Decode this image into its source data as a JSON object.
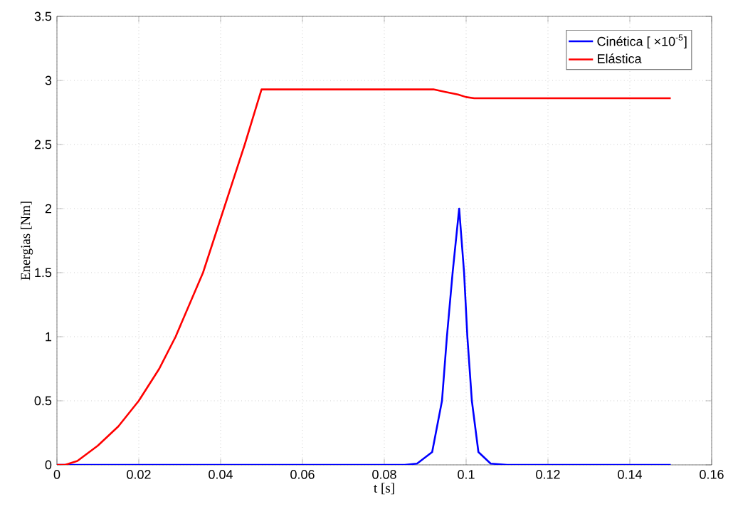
{
  "chart_data": {
    "type": "line",
    "xlabel": "t [s]",
    "ylabel": "Energias [Nm]",
    "xlim": [
      0,
      0.16
    ],
    "xticks": [
      0,
      0.02,
      0.04,
      0.06,
      0.08,
      0.1,
      0.12,
      0.14,
      0.16
    ],
    "ylim": [
      0,
      3.5
    ],
    "yticks": [
      0,
      0.5,
      1,
      1.5,
      2,
      2.5,
      3,
      3.5
    ],
    "grid": true,
    "legend": "top right",
    "series": [
      {
        "name": "Cinética [ ×10$^{-5}$]",
        "color": "#0000ff",
        "x": [
          0,
          0.085,
          0.088,
          0.0917,
          0.0941,
          0.0953,
          0.0967,
          0.0983,
          0.0995,
          0.1003,
          0.1014,
          0.103,
          0.106,
          0.11,
          0.15
        ],
        "values": [
          0,
          0,
          0.01,
          0.1,
          0.5,
          1,
          1.5,
          2,
          1.5,
          1,
          0.5,
          0.1,
          0.01,
          0,
          0
        ]
      },
      {
        "name": "Elástica",
        "color": "#ff0000",
        "x": [
          0,
          0.002,
          0.005,
          0.01,
          0.015,
          0.02,
          0.025,
          0.029,
          0.0357,
          0.0408,
          0.0459,
          0.05,
          0.092,
          0.095,
          0.098,
          0.1,
          0.102,
          0.15
        ],
        "values": [
          0,
          0,
          0.03,
          0.15,
          0.3,
          0.5,
          0.75,
          1,
          1.5,
          2,
          2.5,
          2.93,
          2.93,
          2.91,
          2.89,
          2.87,
          2.861,
          2.861
        ]
      }
    ]
  }
}
